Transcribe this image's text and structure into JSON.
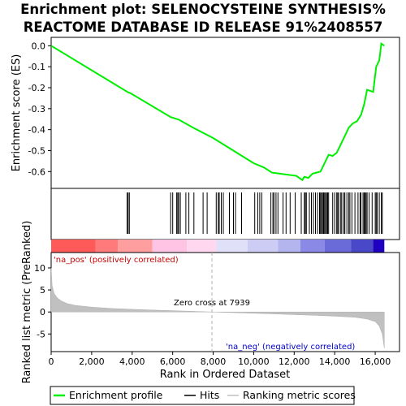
{
  "chart_data": {
    "type": "line",
    "title_line1": "Enrichment plot: SELENOCYSTEINE SYNTHESIS%",
    "title_line2": "REACTOME DATABASE ID RELEASE 91%2408557",
    "es_panel": {
      "ylabel": "Enrichment score (ES)",
      "ylim": [
        -0.68,
        0.04
      ],
      "yticks": [
        0.0,
        -0.1,
        -0.2,
        -0.3,
        -0.4,
        -0.5,
        -0.6
      ],
      "ytick_labels": [
        "0.0",
        "-0.1",
        "-0.2",
        "-0.3",
        "-0.4",
        "-0.5",
        "-0.6"
      ],
      "series_name": "Enrichment profile",
      "color": "#00ee00",
      "profile": [
        [
          0,
          0.0
        ],
        [
          3800,
          -0.222
        ],
        [
          3900,
          -0.225
        ],
        [
          5900,
          -0.34
        ],
        [
          6300,
          -0.352
        ],
        [
          7000,
          -0.39
        ],
        [
          8000,
          -0.44
        ],
        [
          9000,
          -0.5
        ],
        [
          10000,
          -0.56
        ],
        [
          10500,
          -0.58
        ],
        [
          10900,
          -0.605
        ],
        [
          11300,
          -0.61
        ],
        [
          11700,
          -0.615
        ],
        [
          12100,
          -0.62
        ],
        [
          12400,
          -0.64
        ],
        [
          12500,
          -0.625
        ],
        [
          12700,
          -0.63
        ],
        [
          12900,
          -0.61
        ],
        [
          13100,
          -0.605
        ],
        [
          13300,
          -0.6
        ],
        [
          13500,
          -0.56
        ],
        [
          13700,
          -0.52
        ],
        [
          13900,
          -0.525
        ],
        [
          14100,
          -0.51
        ],
        [
          14300,
          -0.47
        ],
        [
          14500,
          -0.43
        ],
        [
          14700,
          -0.39
        ],
        [
          14900,
          -0.37
        ],
        [
          15100,
          -0.36
        ],
        [
          15300,
          -0.33
        ],
        [
          15450,
          -0.28
        ],
        [
          15600,
          -0.21
        ],
        [
          15900,
          -0.22
        ],
        [
          16050,
          -0.1
        ],
        [
          16200,
          -0.07
        ],
        [
          16300,
          0.01
        ],
        [
          16450,
          0.0
        ]
      ]
    },
    "hits": [
      3750,
      3800,
      3860,
      5900,
      6000,
      6200,
      6250,
      6300,
      6380,
      6650,
      6800,
      7050,
      7500,
      7700,
      8150,
      8250,
      8300,
      8400,
      8500,
      8800,
      9000,
      9100,
      9400,
      10050,
      10200,
      10300,
      10400,
      10850,
      10950,
      11000,
      11100,
      11200,
      11450,
      11600,
      11800,
      12050,
      12350,
      12500,
      12550,
      12600,
      12750,
      12850,
      12950,
      13050,
      13150,
      13250,
      13300,
      13350,
      13400,
      13450,
      13500,
      13550,
      13600,
      13650,
      13700,
      13900,
      14000,
      14100,
      14150,
      14200,
      14300,
      14350,
      14450,
      14500,
      14600,
      14700,
      14750,
      14850,
      15000,
      15150,
      15250,
      15300,
      15400,
      15450,
      15500,
      15550,
      15600,
      15700,
      15850,
      16000,
      16050,
      16100,
      16200,
      16300,
      16350
    ],
    "metric_panel": {
      "ylabel": "Ranked list metric (PreRanked)",
      "ylim": [
        -9,
        13.5
      ],
      "yticks": [
        10,
        5,
        0,
        -5
      ],
      "ytick_labels": [
        "10",
        "5",
        "0",
        "-5"
      ],
      "series_name": "Ranking metric scores",
      "color": "#c0c0c0",
      "curve": [
        [
          0,
          10
        ],
        [
          50,
          6
        ],
        [
          150,
          4.2
        ],
        [
          300,
          3.2
        ],
        [
          500,
          2.5
        ],
        [
          800,
          1.9
        ],
        [
          1200,
          1.5
        ],
        [
          2000,
          1.1
        ],
        [
          3000,
          0.8
        ],
        [
          4000,
          0.6
        ],
        [
          5000,
          0.45
        ],
        [
          6000,
          0.3
        ],
        [
          7000,
          0.15
        ],
        [
          7939,
          0.0
        ],
        [
          9000,
          -0.15
        ],
        [
          10000,
          -0.3
        ],
        [
          11000,
          -0.45
        ],
        [
          12000,
          -0.6
        ],
        [
          13000,
          -0.75
        ],
        [
          14000,
          -0.95
        ],
        [
          15000,
          -1.2
        ],
        [
          15600,
          -1.6
        ],
        [
          16000,
          -2.2
        ],
        [
          16200,
          -3.2
        ],
        [
          16350,
          -5.0
        ],
        [
          16450,
          -8.2
        ]
      ],
      "zero_cross_label": "Zero cross at 7939",
      "zero_cross_x": 7939,
      "pos_label": "'na_pos' (positively correlated)",
      "neg_label": "'na_neg' (negatively correlated)"
    },
    "xaxis": {
      "xlabel": "Rank in Ordered Dataset",
      "xlim": [
        0,
        17200
      ],
      "max_rank": 16450,
      "xticks": [
        0,
        2000,
        4000,
        6000,
        8000,
        10000,
        12000,
        14000,
        16000
      ],
      "xtick_labels": [
        "0",
        "2,000",
        "4,000",
        "6,000",
        "8,000",
        "10,000",
        "12,000",
        "14,000",
        "16,000"
      ]
    },
    "colorbar": [
      {
        "from": 0,
        "to": 2200,
        "color": "#ff5a5a"
      },
      {
        "from": 2200,
        "to": 3300,
        "color": "#ff7a7a"
      },
      {
        "from": 3300,
        "to": 5000,
        "color": "#ff9e9e"
      },
      {
        "from": 5000,
        "to": 6700,
        "color": "#ffc4e4"
      },
      {
        "from": 6700,
        "to": 8150,
        "color": "#ffd8f0"
      },
      {
        "from": 8150,
        "to": 9700,
        "color": "#e0e0f8"
      },
      {
        "from": 9700,
        "to": 11200,
        "color": "#ccccf4"
      },
      {
        "from": 11200,
        "to": 12300,
        "color": "#b4b4ee"
      },
      {
        "from": 12300,
        "to": 13500,
        "color": "#8a8ae6"
      },
      {
        "from": 13500,
        "to": 14800,
        "color": "#6a6ad8"
      },
      {
        "from": 14800,
        "to": 15900,
        "color": "#4848c8"
      },
      {
        "from": 15900,
        "to": 16450,
        "color": "#2000c0"
      }
    ],
    "legend": {
      "items": [
        {
          "label": "Enrichment profile",
          "color": "#00ee00"
        },
        {
          "label": "Hits",
          "color": "#000000"
        },
        {
          "label": "Ranking metric scores",
          "color": "#c0c0c0"
        }
      ]
    },
    "colors": {
      "pos_label": "#cc0000",
      "neg_label": "#0000cc"
    }
  }
}
